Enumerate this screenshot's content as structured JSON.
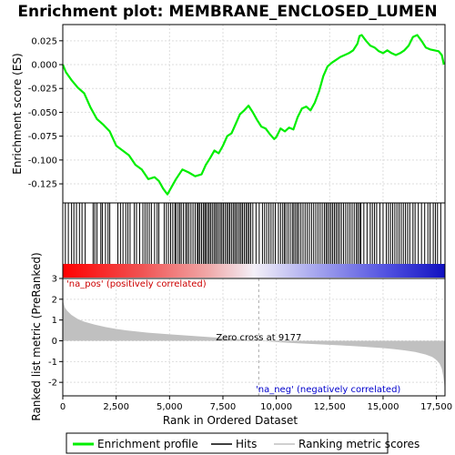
{
  "title": "Enrichment plot: MEMBRANE_ENCLOSED_LUMEN",
  "colors": {
    "es_line": "#00ee00",
    "hits": "#000000",
    "metric_fill": "#c0c0c0",
    "pos_label": "#cc0000",
    "neg_label": "#0000cc",
    "zero_line": "#aaaaaa",
    "grid": "#dddddd"
  },
  "chart_data": [
    {
      "type": "line",
      "panel": "enrichment-profile",
      "ylabel": "Enrichment score (ES)",
      "xlim": [
        0,
        17900
      ],
      "ylim": [
        -0.145,
        0.042
      ],
      "yticks": [
        0.025,
        0.0,
        -0.025,
        -0.05,
        -0.075,
        -0.1,
        -0.125
      ],
      "ytick_labels": [
        "0.025",
        "0.000",
        "-0.025",
        "-0.050",
        "-0.075",
        "-0.100",
        "-0.125"
      ],
      "grid": true,
      "series": [
        {
          "name": "Enrichment profile",
          "x": [
            0,
            150,
            400,
            700,
            1000,
            1300,
            1600,
            1900,
            2200,
            2500,
            2800,
            3100,
            3400,
            3700,
            4000,
            4300,
            4500,
            4700,
            4900,
            5100,
            5300,
            5600,
            5900,
            6200,
            6500,
            6700,
            6900,
            7100,
            7300,
            7500,
            7700,
            7900,
            8100,
            8300,
            8500,
            8700,
            8900,
            9100,
            9300,
            9500,
            9700,
            9900,
            10000,
            10200,
            10400,
            10600,
            10800,
            11000,
            11200,
            11400,
            11600,
            11800,
            12000,
            12200,
            12400,
            12600,
            12800,
            13000,
            13200,
            13400,
            13600,
            13800,
            13900,
            14000,
            14200,
            14400,
            14600,
            14800,
            15000,
            15200,
            15400,
            15600,
            15800,
            16000,
            16200,
            16400,
            16600,
            16800,
            17000,
            17200,
            17400,
            17600,
            17750,
            17850
          ],
          "y": [
            0.0,
            -0.008,
            -0.016,
            -0.024,
            -0.03,
            -0.045,
            -0.057,
            -0.063,
            -0.07,
            -0.085,
            -0.09,
            -0.095,
            -0.105,
            -0.11,
            -0.12,
            -0.118,
            -0.122,
            -0.13,
            -0.136,
            -0.128,
            -0.12,
            -0.11,
            -0.113,
            -0.117,
            -0.115,
            -0.105,
            -0.098,
            -0.09,
            -0.093,
            -0.085,
            -0.075,
            -0.072,
            -0.062,
            -0.052,
            -0.048,
            -0.043,
            -0.05,
            -0.058,
            -0.065,
            -0.067,
            -0.073,
            -0.078,
            -0.076,
            -0.067,
            -0.07,
            -0.066,
            -0.068,
            -0.055,
            -0.046,
            -0.044,
            -0.048,
            -0.04,
            -0.028,
            -0.012,
            -0.002,
            0.002,
            0.005,
            0.008,
            0.01,
            0.012,
            0.015,
            0.022,
            0.03,
            0.031,
            0.025,
            0.02,
            0.018,
            0.014,
            0.012,
            0.015,
            0.012,
            0.01,
            0.012,
            0.015,
            0.02,
            0.029,
            0.031,
            0.025,
            0.018,
            0.016,
            0.015,
            0.014,
            0.01,
            0.0
          ]
        }
      ]
    },
    {
      "type": "scatter",
      "panel": "hits",
      "series": [
        {
          "name": "Hits",
          "x": [
            120,
            260,
            410,
            520,
            640,
            780,
            900,
            1050,
            1420,
            1500,
            1600,
            1780,
            1850,
            2000,
            2120,
            2200,
            2580,
            2700,
            2820,
            2950,
            3050,
            3150,
            3350,
            3450,
            3600,
            3750,
            3850,
            3950,
            4050,
            4150,
            4300,
            4420,
            4500,
            4750,
            4850,
            4950,
            5050,
            5150,
            5250,
            5300,
            5400,
            5480,
            5550,
            5650,
            5750,
            5820,
            5900,
            6000,
            6100,
            6200,
            6300,
            6350,
            6420,
            6500,
            6580,
            6650,
            6700,
            6780,
            6850,
            6920,
            7000,
            7080,
            7150,
            7220,
            7300,
            7380,
            7450,
            7520,
            7600,
            7680,
            7750,
            7820,
            7900,
            7980,
            8050,
            8120,
            8200,
            8280,
            8350,
            8420,
            8500,
            8580,
            8650,
            8720,
            8800,
            8900,
            9050,
            9200,
            9350,
            9450,
            9550,
            9650,
            9750,
            9850,
            9950,
            10100,
            10200,
            10300,
            10380,
            10450,
            10550,
            10650,
            10750,
            10820,
            10900,
            10980,
            11050,
            11150,
            11250,
            11350,
            11450,
            11550,
            11650,
            11750,
            11850,
            11950,
            12050,
            12150,
            12250,
            12330,
            12400,
            12480,
            12560,
            12640,
            12720,
            12800,
            12880,
            12960,
            13050,
            13150,
            13250,
            13350,
            13450,
            13550,
            13650,
            13750,
            13820,
            13900,
            13960,
            14100,
            14250,
            14400,
            14500,
            14600,
            14700,
            14850,
            15000,
            15150,
            15250,
            15350,
            15450,
            15550,
            15650,
            15750,
            15850,
            15950,
            16050,
            16150,
            16250,
            16400,
            16500,
            16650,
            16800,
            16950,
            17100,
            17200,
            17350,
            17450,
            17550,
            17700
          ]
        }
      ]
    },
    {
      "type": "area",
      "panel": "ranked-list-metric",
      "ylabel": "Ranked list metric (PreRanked)",
      "xlabel": "Rank in Ordered Dataset",
      "xlim": [
        0,
        17900
      ],
      "ylim": [
        -2.65,
        3.0
      ],
      "xticks": [
        0,
        2500,
        5000,
        7500,
        10000,
        12500,
        15000,
        17500
      ],
      "xtick_labels": [
        "0",
        "2,500",
        "5,000",
        "7,500",
        "10,000",
        "12,500",
        "15,000",
        "17,500"
      ],
      "yticks": [
        3,
        2,
        1,
        0,
        -1,
        -2
      ],
      "ytick_labels": [
        "3",
        "2",
        "1",
        "0",
        "-1",
        "-2"
      ],
      "grid": true,
      "zero_cross": 9177,
      "series": [
        {
          "name": "Ranking metric scores",
          "x": [
            0,
            30,
            100,
            200,
            400,
            700,
            1000,
            1500,
            2000,
            2500,
            3000,
            3500,
            4000,
            5000,
            6000,
            7000,
            8000,
            9177,
            10000,
            11000,
            12000,
            13000,
            14000,
            15000,
            15500,
            16000,
            16500,
            17000,
            17300,
            17500,
            17650,
            17750,
            17820,
            17870,
            17900
          ],
          "y": [
            2.75,
            1.85,
            1.6,
            1.45,
            1.25,
            1.05,
            0.92,
            0.78,
            0.66,
            0.57,
            0.5,
            0.44,
            0.39,
            0.31,
            0.24,
            0.17,
            0.1,
            0.0,
            -0.06,
            -0.12,
            -0.17,
            -0.22,
            -0.28,
            -0.35,
            -0.4,
            -0.46,
            -0.54,
            -0.66,
            -0.78,
            -0.92,
            -1.1,
            -1.35,
            -1.7,
            -2.1,
            -2.6
          ]
        }
      ]
    }
  ],
  "annotations": {
    "pos_label": "'na_pos' (positively correlated)",
    "neg_label": "'na_neg' (negatively correlated)",
    "zero_cross_label": "Zero cross at 9177"
  },
  "legend": {
    "placement": "bottom",
    "items": [
      {
        "label": "Enrichment profile",
        "color": "#00ee00",
        "kind": "line-thick"
      },
      {
        "label": "Hits",
        "color": "#000000",
        "kind": "line"
      },
      {
        "label": "Ranking metric scores",
        "color": "#c0c0c0",
        "kind": "line"
      }
    ]
  }
}
